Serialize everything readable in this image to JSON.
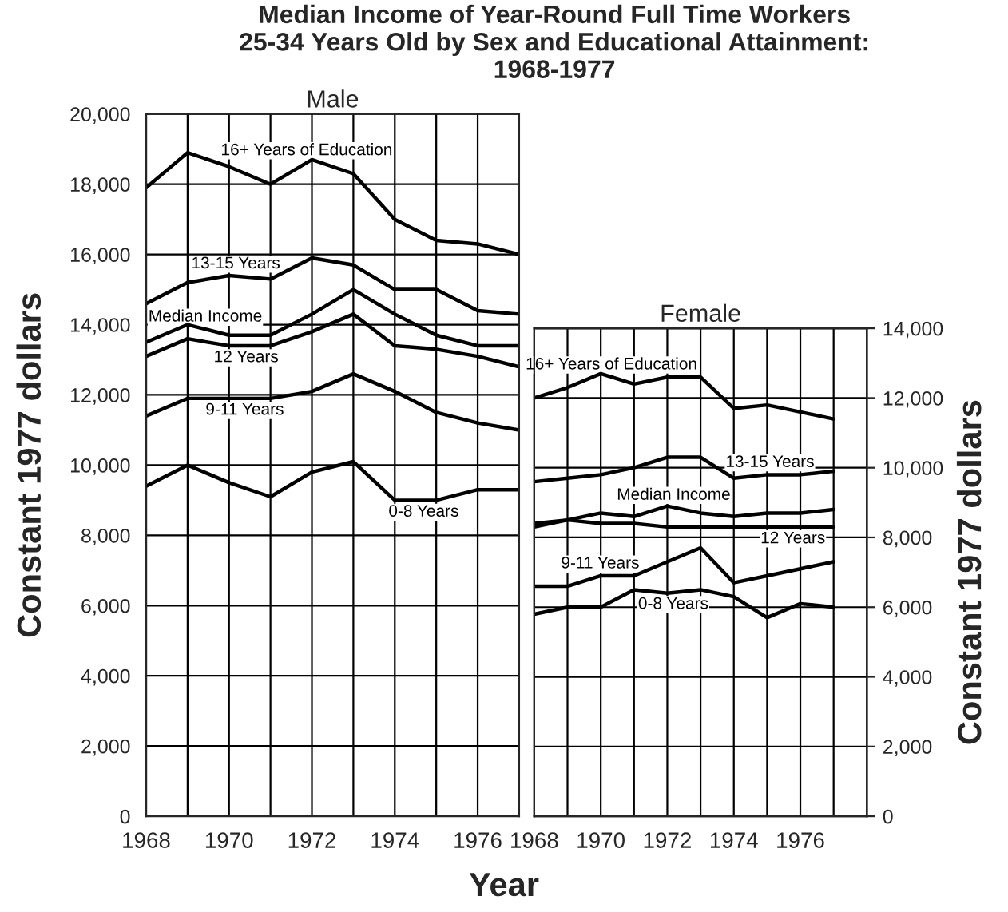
{
  "chart_data": [
    {
      "type": "line",
      "title": "Median Income of Year-Round Full Time Workers\n25-34 Years Old by Sex and Educational Attainment:\n1968-1977",
      "subtitle": "Male",
      "xlabel": "Year",
      "ylabel": "Constant 1977 dollars",
      "x": [
        1968,
        1969,
        1970,
        1971,
        1972,
        1973,
        1974,
        1975,
        1976,
        1977
      ],
      "series": [
        {
          "name": "16+ Years of Education",
          "color": "#000000",
          "values": [
            17900,
            18900,
            18500,
            18000,
            18700,
            18300,
            17000,
            16400,
            16300,
            16000
          ]
        },
        {
          "name": "13-15 Years",
          "color": "#000000",
          "values": [
            14600,
            15200,
            15400,
            15300,
            15900,
            15700,
            15000,
            15000,
            14400,
            14300
          ]
        },
        {
          "name": "Median Income",
          "color": "#000000",
          "values": [
            13500,
            14000,
            13700,
            13700,
            14300,
            15000,
            14300,
            13700,
            13400,
            13400
          ]
        },
        {
          "name": "12 Years",
          "color": "#000000",
          "values": [
            13100,
            13600,
            13400,
            13400,
            13800,
            14300,
            13400,
            13300,
            13100,
            12800
          ]
        },
        {
          "name": "9-11 Years",
          "color": "#000000",
          "values": [
            11400,
            11900,
            11900,
            11900,
            12100,
            12600,
            12100,
            11500,
            11200,
            11000
          ]
        },
        {
          "name": "0-8 Years",
          "color": "#000000",
          "values": [
            9400,
            10000,
            9500,
            9100,
            9800,
            10100,
            9000,
            9000,
            9300,
            9300
          ]
        }
      ],
      "xlim": [
        1968,
        1977
      ],
      "xticks": [
        1968,
        {
          "value": 1969,
          "label": null
        },
        1970,
        {
          "value": 1971,
          "label": null
        },
        1972,
        {
          "value": 1973,
          "label": null
        },
        1974,
        {
          "value": 1975,
          "label": null
        },
        1976,
        {
          "value": 1977,
          "label": null
        }
      ],
      "ylim": [
        0,
        20000
      ],
      "yticks": [
        {
          "value": 0,
          "label": "0"
        },
        {
          "value": 2000,
          "label": "2,000"
        },
        {
          "value": 4000,
          "label": "4,000"
        },
        {
          "value": 6000,
          "label": "6,000"
        },
        {
          "value": 8000,
          "label": "8,000"
        },
        {
          "value": 10000,
          "label": "10,000"
        },
        {
          "value": 12000,
          "label": "12,000"
        },
        {
          "value": 14000,
          "label": "14,000"
        },
        {
          "value": 16000,
          "label": "16,000"
        },
        {
          "value": 18000,
          "label": "18,000"
        },
        {
          "value": 20000,
          "label": "20,000"
        }
      ],
      "grid": true,
      "legend": false,
      "marker": "none",
      "line_style": "solid"
    },
    {
      "type": "line",
      "subtitle": "Female",
      "y2label": "Constant 1977 dollars",
      "x": [
        1968,
        1969,
        1970,
        1971,
        1972,
        1973,
        1974,
        1975,
        1976,
        1977
      ],
      "series": [
        {
          "name": "16+ Years of Education",
          "color": "#000000",
          "axis": "y2",
          "values": [
            12000,
            12300,
            12700,
            12400,
            12600,
            12600,
            11700,
            11800,
            11600,
            11400
          ]
        },
        {
          "name": "13-15 Years",
          "color": "#000000",
          "axis": "y2",
          "values": [
            9600,
            9700,
            9800,
            10000,
            10300,
            10300,
            9700,
            9800,
            9800,
            9900
          ]
        },
        {
          "name": "Median Income",
          "color": "#000000",
          "axis": "y2",
          "values": [
            8300,
            8500,
            8700,
            8600,
            8900,
            8700,
            8600,
            8700,
            8700,
            8800
          ]
        },
        {
          "name": "12 Years",
          "color": "#000000",
          "axis": "y2",
          "values": [
            8400,
            8500,
            8400,
            8400,
            8300,
            8300,
            8300,
            8300,
            8300,
            8300
          ]
        },
        {
          "name": "9-11 Years",
          "color": "#000000",
          "axis": "y2",
          "values": [
            6600,
            6600,
            6900,
            6900,
            7300,
            7700,
            6700,
            6900,
            7100,
            7300
          ]
        },
        {
          "name": "0-8 Years",
          "color": "#000000",
          "axis": "y2",
          "values": [
            5800,
            6000,
            6000,
            6500,
            6400,
            6500,
            6300,
            5700,
            6100,
            6000
          ]
        }
      ],
      "xlim": [
        1968,
        1978
      ],
      "xticks": [
        1968,
        {
          "value": 1969,
          "label": null
        },
        1970,
        {
          "value": 1971,
          "label": null
        },
        1972,
        {
          "value": 1973,
          "label": null
        },
        1974,
        {
          "value": 1975,
          "label": null
        },
        1976,
        {
          "value": 1977,
          "label": null
        },
        {
          "value": 1978,
          "label": null
        }
      ],
      "y2lim": [
        0,
        14000
      ],
      "y2ticks": [
        0,
        {
          "value": 2000,
          "label": "2,000"
        },
        {
          "value": 4000,
          "label": "4,000"
        },
        {
          "value": 6000,
          "label": "6,000"
        },
        {
          "value": 8000,
          "label": "8,000"
        },
        {
          "value": 10000,
          "label": "10,000"
        },
        {
          "value": 12000,
          "label": "12,000"
        },
        {
          "value": 14000,
          "label": "14,000"
        }
      ],
      "grid": true,
      "legend": false,
      "marker": "none",
      "line_style": "solid"
    }
  ]
}
